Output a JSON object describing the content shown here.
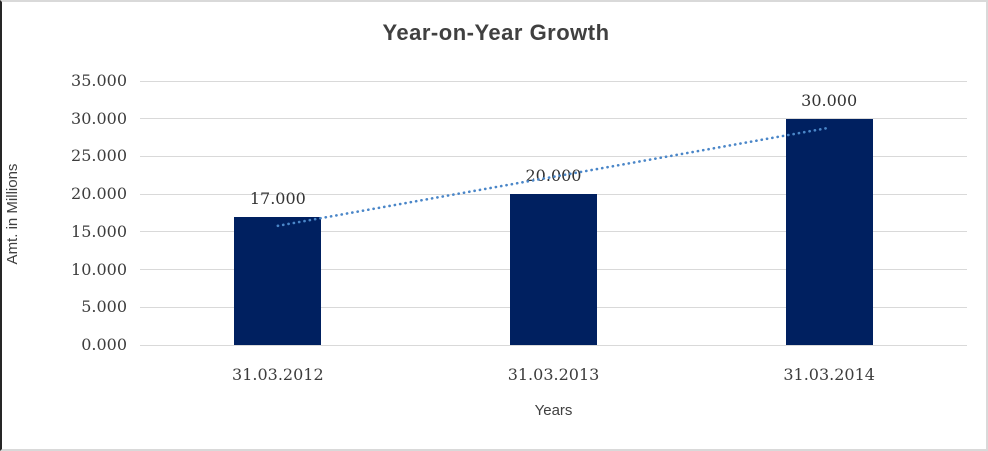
{
  "chart_data": {
    "type": "bar",
    "title": "Year-on-Year Growth",
    "xlabel": "Years",
    "ylabel": "Amt. in Millions",
    "categories": [
      "31.03.2012",
      "31.03.2013",
      "31.03.2014"
    ],
    "values": [
      17,
      20,
      30
    ],
    "value_labels": [
      "17.000",
      "20.000",
      "30.000"
    ],
    "ylim": [
      0,
      35
    ],
    "yticks": [
      0,
      5,
      10,
      15,
      20,
      25,
      30,
      35
    ],
    "ytick_labels": [
      "0.000",
      "5.000",
      "10.000",
      "15.000",
      "20.000",
      "25.000",
      "30.000",
      "35.000"
    ],
    "grid": "horizontal",
    "legend": "none",
    "colors": {
      "bar": "#002060",
      "trendline": "#4a86c8",
      "gridline": "#d9d9d9",
      "text": "#404040"
    },
    "trendline": {
      "type": "linear",
      "style": "dotted",
      "fit_values": [
        15.8,
        22.3,
        28.8
      ]
    }
  }
}
